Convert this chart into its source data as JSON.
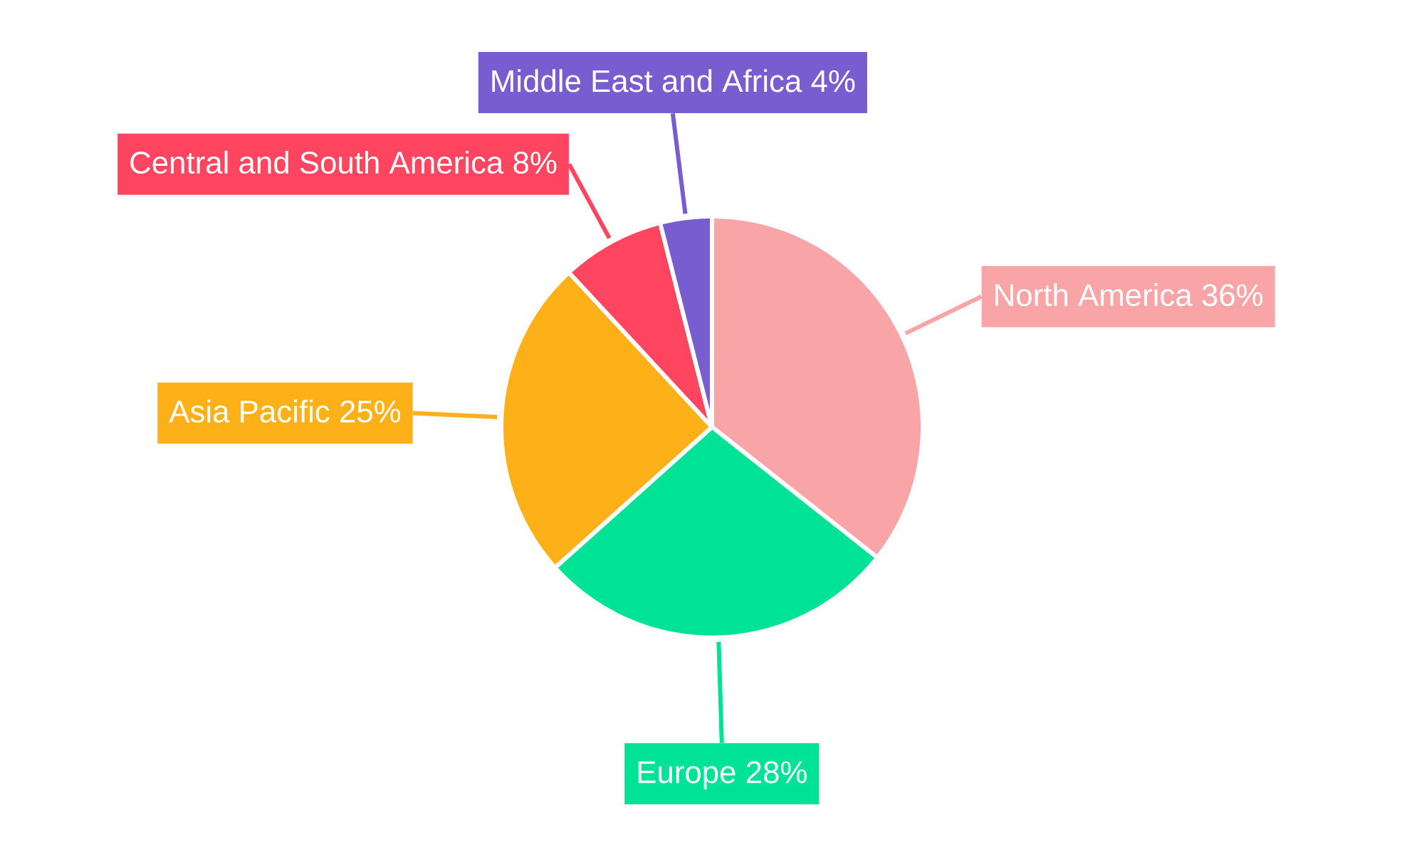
{
  "chart_data": {
    "type": "pie",
    "categories": [
      "North America",
      "Europe",
      "Asia Pacific",
      "Central and South America",
      "Middle East and Africa"
    ],
    "values": [
      36,
      28,
      25,
      8,
      4
    ],
    "value_labels": [
      "36%",
      "28%",
      "25%",
      "8%",
      "4%"
    ],
    "colors": [
      "#f9a5a7",
      "#00e396",
      "#feb019",
      "#ff4560",
      "#775dd0"
    ]
  }
}
